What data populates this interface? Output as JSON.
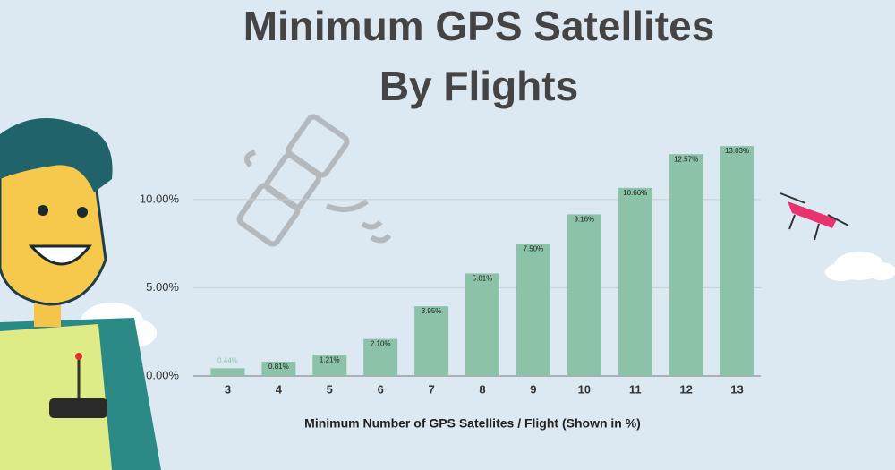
{
  "chart_data": {
    "type": "bar",
    "title": [
      "Minimum GPS Satellites",
      "By Flights"
    ],
    "x_label": "Minimum Number of GPS Satellites / Flight (Shown in %)",
    "categories": [
      "3",
      "4",
      "5",
      "6",
      "7",
      "8",
      "9",
      "10",
      "11",
      "12",
      "13"
    ],
    "values": [
      0.44,
      0.81,
      1.21,
      2.1,
      3.95,
      5.81,
      7.5,
      9.16,
      10.66,
      12.57,
      13.03
    ],
    "value_labels": [
      "0.44%",
      "0.81%",
      "1.21%",
      "2.10%",
      "3.95%",
      "5.81%",
      "7.50%",
      "9.16%",
      "10.66%",
      "12.57%",
      "13.03%"
    ],
    "color": "#8cc3a8",
    "ylim": [
      0,
      14
    ],
    "yticks": [
      {
        "value": 0,
        "label": "0.00%"
      },
      {
        "value": 5,
        "label": "5.00%"
      },
      {
        "value": 10,
        "label": "10.00%"
      }
    ],
    "grid": true
  }
}
